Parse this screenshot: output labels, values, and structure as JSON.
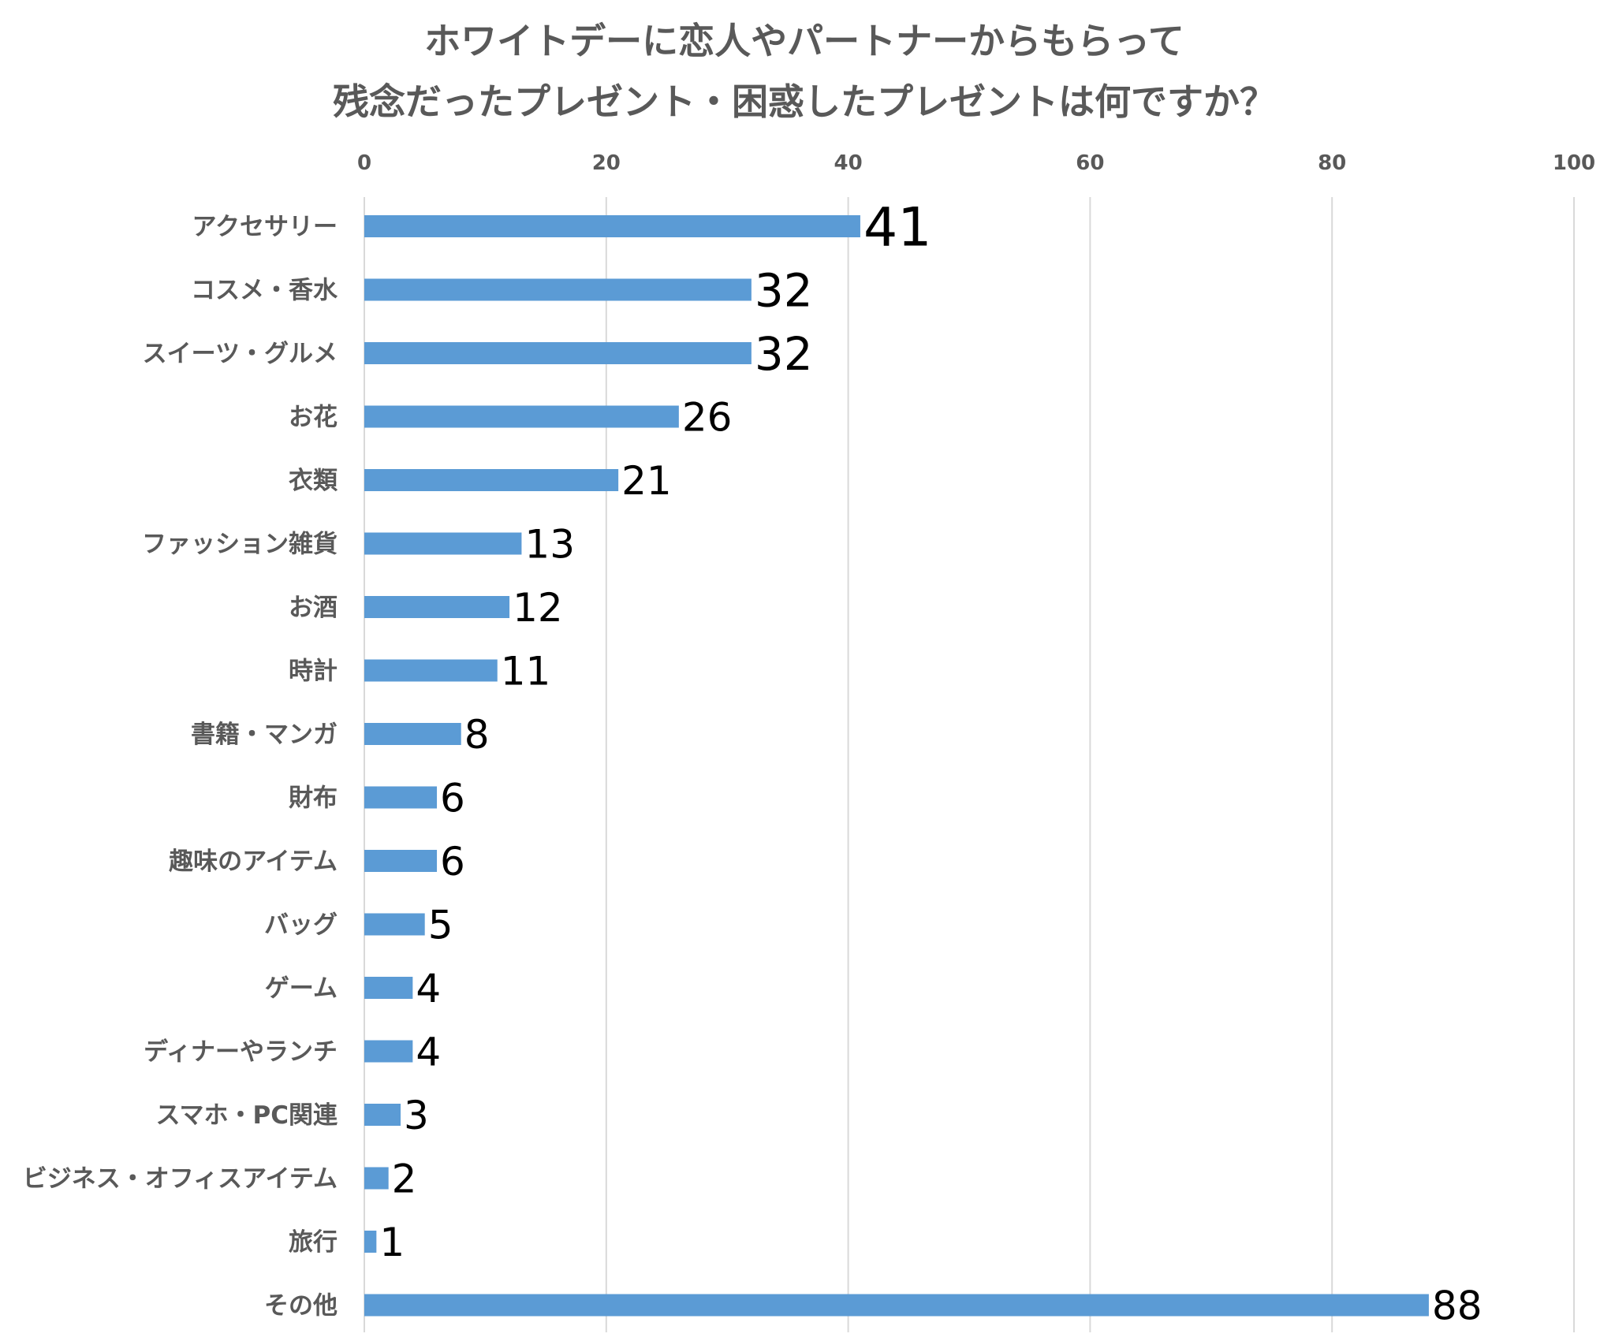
{
  "chart_data": {
    "type": "bar",
    "orientation": "horizontal",
    "title": [
      "ホワイトデーに恋人やパートナーからもらって",
      "残念だったプレゼント・困惑したプレゼントは何ですか？"
    ],
    "categories": [
      "アクセサリー",
      "コスメ・香水",
      "スイーツ・グルメ",
      "お花",
      "衣類",
      "ファッション雑貨",
      "お酒",
      "時計",
      "書籍・マンガ",
      "財布",
      "趣味のアイテム",
      "バッグ",
      "ゲーム",
      "ディナーやランチ",
      "スマホ・PC関連",
      "ビジネス・オフィスアイテム",
      "旅行",
      "その他"
    ],
    "values": [
      41,
      32,
      32,
      26,
      21,
      13,
      12,
      11,
      8,
      6,
      6,
      5,
      4,
      4,
      3,
      2,
      1,
      88
    ],
    "xlim": [
      0,
      100
    ],
    "xticks": [
      "0",
      "20",
      "40",
      "60",
      "80",
      "100"
    ],
    "axis_position": "top",
    "grid": true,
    "bar_color": "#5b9bd5",
    "legend": "none"
  }
}
